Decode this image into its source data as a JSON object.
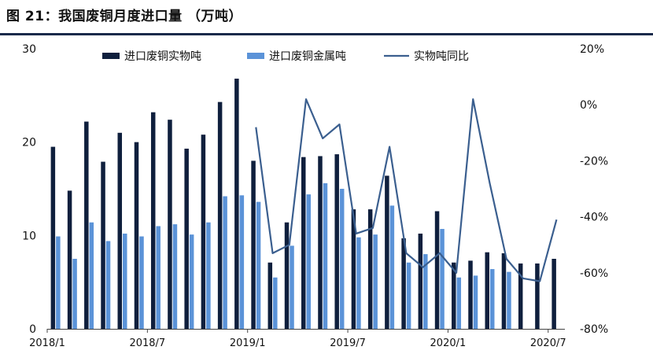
{
  "figure": {
    "title": "图 21：我国废铜月度进口量 （万吨）"
  },
  "chart_data": {
    "type": "bar",
    "categories": [
      "2018/1",
      "2018/2",
      "2018/3",
      "2018/4",
      "2018/5",
      "2018/6",
      "2018/7",
      "2018/8",
      "2018/9",
      "2018/10",
      "2018/11",
      "2018/12",
      "2019/1",
      "2019/2",
      "2019/3",
      "2019/4",
      "2019/5",
      "2019/6",
      "2019/7",
      "2019/8",
      "2019/9",
      "2019/10",
      "2019/11",
      "2019/12",
      "2020/1",
      "2020/2",
      "2020/3",
      "2020/4",
      "2020/5",
      "2020/6",
      "2020/7"
    ],
    "x_tick_labels": [
      "2018/1",
      "2018/7",
      "2019/1",
      "2019/7",
      "2020/1",
      "2020/7"
    ],
    "x_tick_indices": [
      0,
      6,
      12,
      18,
      24,
      30
    ],
    "series": [
      {
        "name": "进口废铜实物吨",
        "kind": "bar",
        "axis": "left",
        "color": "#0f1f3d",
        "values": [
          19.5,
          14.8,
          22.2,
          17.9,
          21.0,
          20.0,
          23.2,
          22.4,
          19.3,
          20.8,
          24.3,
          26.8,
          18.0,
          7.1,
          11.4,
          18.4,
          18.5,
          18.7,
          12.8,
          12.8,
          16.4,
          9.7,
          10.2,
          12.6,
          7.1,
          7.3,
          8.2,
          8.1,
          7.0,
          7.0,
          7.5
        ]
      },
      {
        "name": "进口废铜金属吨",
        "kind": "bar",
        "axis": "left",
        "color": "#5b93d8",
        "values": [
          9.9,
          7.5,
          11.4,
          9.4,
          10.2,
          9.9,
          11.0,
          11.2,
          10.1,
          11.4,
          14.2,
          14.3,
          13.6,
          5.5,
          8.9,
          14.4,
          15.6,
          15.0,
          9.8,
          10.1,
          13.2,
          7.1,
          8.0,
          10.7,
          5.5,
          5.7,
          6.4,
          6.1,
          0,
          0,
          0
        ]
      },
      {
        "name": "实物吨同比",
        "kind": "line",
        "axis": "right",
        "color": "#3b5f8f",
        "values": [
          null,
          null,
          null,
          null,
          null,
          null,
          null,
          null,
          null,
          null,
          null,
          null,
          -8,
          -53,
          -50,
          2,
          -12,
          -7,
          -46,
          -44,
          -15,
          -53,
          -58,
          -53,
          -60,
          2,
          -28,
          -55,
          -62,
          -63,
          -41
        ]
      }
    ],
    "y_left": {
      "lim": [
        0,
        30
      ],
      "ticks": [
        0,
        10,
        20,
        30
      ]
    },
    "y_right": {
      "lim": [
        -80,
        20
      ],
      "ticks": [
        -80,
        -60,
        -40,
        -20,
        0,
        20
      ],
      "tick_labels": [
        "-80%",
        "-60%",
        "-40%",
        "-20%",
        "0%",
        "20%"
      ]
    },
    "legend": {
      "position": "top-center"
    },
    "grid": false
  }
}
